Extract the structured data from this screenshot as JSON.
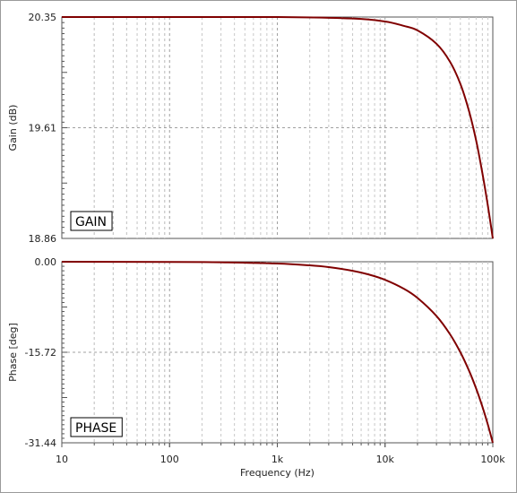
{
  "chart_data": [
    {
      "type": "line",
      "panel_label": "GAIN",
      "xlabel": "",
      "ylabel": "Gain (dB)",
      "xscale": "log",
      "xlim": [
        10,
        100000
      ],
      "ylim": [
        18.86,
        20.35
      ],
      "yticks": [
        "20.35",
        "19.61",
        "18.86"
      ],
      "grid": true,
      "series": [
        {
          "color": "#800000",
          "x": [
            10,
            100,
            1000,
            5000,
            10000,
            15000,
            20000,
            30000,
            40000,
            50000,
            60000,
            70000,
            80000,
            90000,
            100000
          ],
          "y": [
            20.35,
            20.35,
            20.35,
            20.34,
            20.32,
            20.29,
            20.26,
            20.17,
            20.05,
            19.9,
            19.72,
            19.52,
            19.3,
            19.08,
            18.86
          ]
        }
      ]
    },
    {
      "type": "line",
      "panel_label": "PHASE",
      "xlabel": "Frequency (Hz)",
      "ylabel": "Phase [deg]",
      "xscale": "log",
      "xlim": [
        10,
        100000
      ],
      "ylim": [
        -31.44,
        0.0
      ],
      "yticks": [
        "0.00",
        "-15.72",
        "-31.44"
      ],
      "xticks": [
        "10",
        "100",
        "1k",
        "10k",
        "100k"
      ],
      "grid": true,
      "series": [
        {
          "color": "#800000",
          "x": [
            10,
            100,
            300,
            1000,
            2000,
            3000,
            5000,
            7000,
            10000,
            15000,
            20000,
            30000,
            40000,
            50000,
            60000,
            70000,
            80000,
            90000,
            100000
          ],
          "y": [
            0,
            -0.03,
            -0.09,
            -0.31,
            -0.63,
            -0.94,
            -1.57,
            -2.2,
            -3.14,
            -4.71,
            -6.29,
            -9.43,
            -12.57,
            -15.72,
            -18.86,
            -22.0,
            -25.15,
            -28.29,
            -31.44
          ]
        }
      ]
    }
  ]
}
